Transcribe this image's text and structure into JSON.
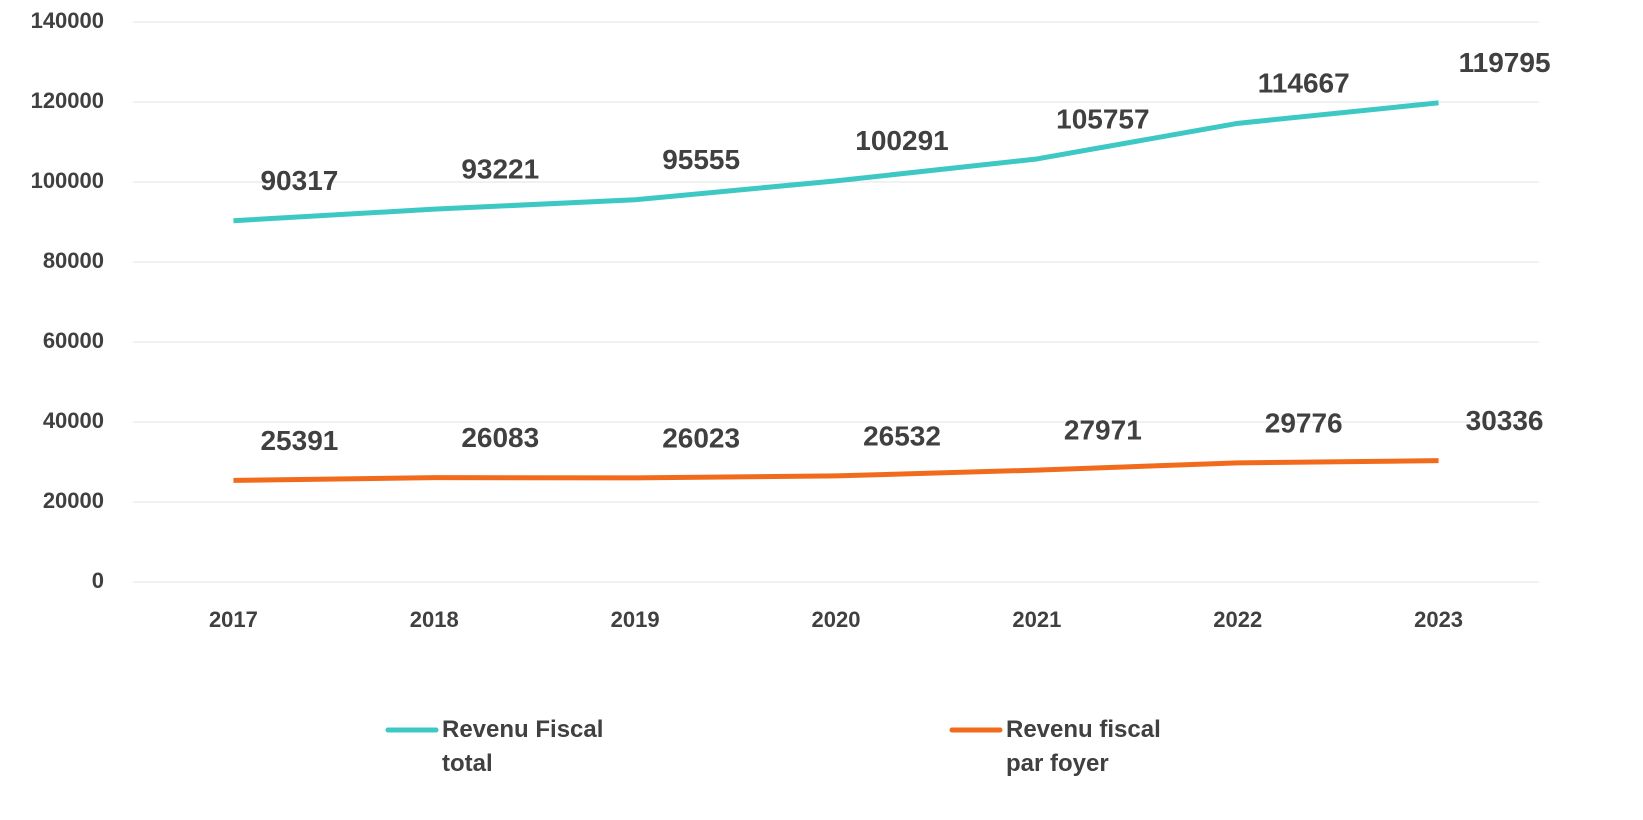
{
  "chart_data": {
    "type": "line",
    "categories": [
      "2017",
      "2018",
      "2019",
      "2020",
      "2021",
      "2022",
      "2023"
    ],
    "series": [
      {
        "name": "Revenu Fiscal total",
        "color": "#3ec8c4",
        "values": [
          90317,
          93221,
          95555,
          100291,
          105757,
          114667,
          119795
        ]
      },
      {
        "name": "Revenu fiscal par foyer",
        "color": "#f26b1d",
        "values": [
          25391,
          26083,
          26023,
          26532,
          27971,
          29776,
          30336
        ]
      }
    ],
    "ylim": [
      0,
      140000
    ],
    "yticks": [
      0,
      20000,
      40000,
      60000,
      80000,
      100000,
      120000,
      140000
    ],
    "grid": true,
    "legend": "bottom"
  }
}
